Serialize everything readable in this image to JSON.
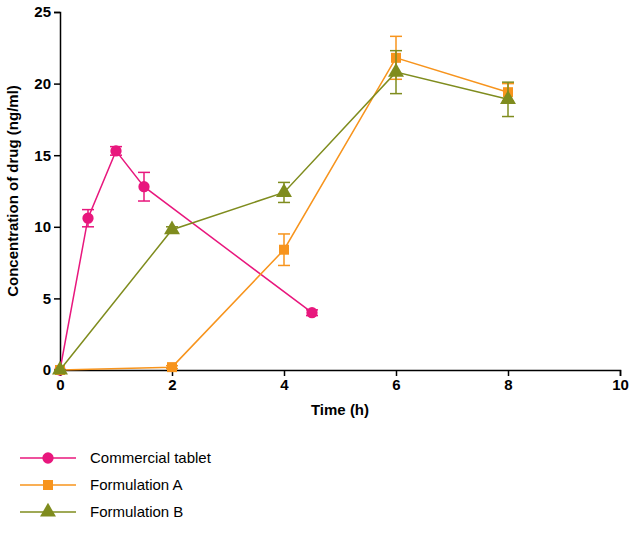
{
  "chart_data": {
    "type": "line",
    "x_label": "Time (h)",
    "y_label": "Concentration of drug (ng/ml)",
    "xlim": [
      0,
      10
    ],
    "xticks": [
      0,
      2,
      4,
      6,
      8,
      10
    ],
    "ylim": [
      0,
      25
    ],
    "yticks": [
      0,
      5,
      10,
      15,
      20,
      25
    ],
    "grid": false,
    "legend": "bottom-left",
    "series": [
      {
        "name": "Commercial tablet",
        "color": "#e8177d",
        "marker": "circle",
        "line_style": "solid",
        "x": [
          0,
          0.5,
          1,
          1.5,
          4.5
        ],
        "values": [
          0,
          10.6,
          15.3,
          12.8,
          4.0
        ],
        "errors": [
          0,
          0.6,
          0.3,
          1.0,
          0.2
        ]
      },
      {
        "name": "Formulation A",
        "color": "#f7941d",
        "marker": "square",
        "line_style": "solid",
        "x": [
          0,
          2,
          4,
          6,
          8
        ],
        "values": [
          0,
          0.2,
          8.4,
          21.8,
          19.4
        ],
        "errors": [
          0,
          0.1,
          1.1,
          1.5,
          0.6
        ]
      },
      {
        "name": "Formulation B",
        "color": "#7f8c1e",
        "marker": "triangle",
        "line_style": "solid",
        "x": [
          0,
          2,
          4,
          6,
          8
        ],
        "values": [
          0,
          9.8,
          12.4,
          20.8,
          18.9
        ],
        "errors": [
          0,
          0.2,
          0.7,
          1.5,
          1.2
        ]
      }
    ]
  }
}
